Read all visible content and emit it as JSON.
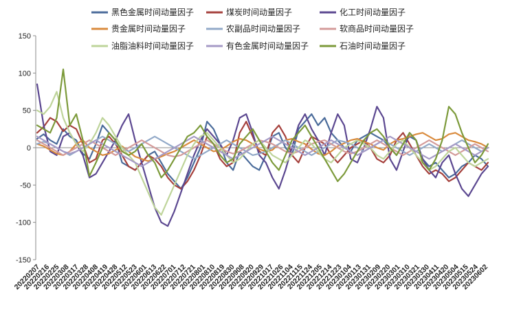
{
  "chart_data": {
    "type": "line",
    "title": "",
    "xlabel": "",
    "ylabel": "",
    "ylim": [
      -150,
      150
    ],
    "y_ticks": [
      150,
      100,
      50,
      0,
      -50,
      -100,
      -150
    ],
    "grid": false,
    "legend_position": "top",
    "x_tick_labels": [
      "20220207",
      "20220216",
      "20220225",
      "20220308",
      "20220317",
      "20220328",
      "20220408",
      "20220419",
      "20220428",
      "20220512",
      "20220523",
      "20220601",
      "20220613",
      "20220622",
      "20220701",
      "20220712",
      "20220721",
      "20220801",
      "20220810",
      "20220819",
      "20220830",
      "20220908",
      "20220920",
      "20220929",
      "20221017",
      "20221026",
      "20221104",
      "20221115",
      "20221124",
      "20221205",
      "20221214",
      "20221223",
      "20230104",
      "20230113",
      "20230131",
      "20230209",
      "20230220",
      "20230301",
      "20230310",
      "20230321",
      "20230330",
      "20230411",
      "20230420",
      "20230504",
      "20230515",
      "20230524",
      "20230602"
    ],
    "series": [
      {
        "name": "黑色金属时间动量因子",
        "color": "#4a6b9a",
        "values": [
          12,
          18,
          10,
          5,
          25,
          15,
          10,
          -8,
          -15,
          5,
          30,
          20,
          10,
          -20,
          -25,
          -30,
          -20,
          -10,
          -5,
          -20,
          -35,
          -45,
          -55,
          -40,
          -20,
          0,
          35,
          25,
          5,
          -20,
          -30,
          -5,
          -15,
          -25,
          -30,
          -10,
          15,
          20,
          0,
          -10,
          25,
          35,
          45,
          30,
          40,
          20,
          10,
          0,
          -5,
          10,
          15,
          20,
          15,
          10,
          0,
          -10,
          5,
          15,
          10,
          -15,
          -25,
          -20,
          -30,
          -40,
          -35,
          -25,
          -20,
          -10,
          -15,
          -25
        ]
      },
      {
        "name": "煤炭时间动量因子",
        "color": "#a5403c",
        "values": [
          20,
          28,
          40,
          35,
          22,
          30,
          25,
          5,
          -20,
          -15,
          10,
          15,
          5,
          -10,
          -25,
          -30,
          -20,
          -10,
          -15,
          -25,
          -40,
          -50,
          -55,
          -45,
          -30,
          -10,
          15,
          5,
          -15,
          -25,
          -20,
          20,
          35,
          15,
          -5,
          -10,
          20,
          30,
          15,
          -10,
          -20,
          0,
          15,
          10,
          5,
          -10,
          -20,
          -10,
          0,
          5,
          10,
          0,
          -15,
          -20,
          -10,
          10,
          20,
          5,
          -10,
          -25,
          -35,
          -30,
          -35,
          -45,
          -40,
          -30,
          -20,
          -25,
          -30,
          -20
        ]
      },
      {
        "name": "化工时间动量因子",
        "color": "#5b4790",
        "values": [
          85,
          30,
          -5,
          -10,
          15,
          20,
          5,
          -10,
          -40,
          -35,
          -20,
          -5,
          10,
          30,
          45,
          10,
          -20,
          -50,
          -80,
          -100,
          -105,
          -85,
          -60,
          -35,
          -10,
          10,
          25,
          15,
          5,
          -10,
          10,
          40,
          45,
          20,
          -10,
          -20,
          -40,
          -55,
          -30,
          0,
          30,
          45,
          25,
          10,
          -10,
          20,
          45,
          30,
          -15,
          -20,
          0,
          25,
          55,
          40,
          -15,
          -30,
          -5,
          20,
          10,
          -15,
          -30,
          -40,
          -20,
          -10,
          -35,
          -55,
          -65,
          -50,
          -35,
          -25
        ]
      },
      {
        "name": "贵金属时间动量因子",
        "color": "#d98a3c",
        "values": [
          5,
          2,
          -3,
          -8,
          -10,
          -5,
          5,
          10,
          0,
          -5,
          -10,
          -8,
          -3,
          2,
          -5,
          -12,
          -15,
          -18,
          -15,
          -12,
          -8,
          -5,
          0,
          5,
          10,
          5,
          0,
          -5,
          -3,
          2,
          8,
          12,
          10,
          5,
          -2,
          -5,
          -3,
          5,
          10,
          12,
          8,
          5,
          -2,
          -8,
          -10,
          -5,
          2,
          6,
          10,
          12,
          8,
          5,
          0,
          -3,
          5,
          10,
          12,
          15,
          18,
          20,
          15,
          10,
          12,
          18,
          20,
          15,
          10,
          8,
          5,
          0
        ]
      },
      {
        "name": "农副品时间动量因子",
        "color": "#92a9c8",
        "values": [
          5,
          8,
          5,
          0,
          -5,
          -10,
          -5,
          0,
          5,
          10,
          15,
          10,
          5,
          0,
          -5,
          0,
          5,
          10,
          15,
          10,
          5,
          0,
          -5,
          -10,
          -15,
          -10,
          -5,
          0,
          5,
          10,
          5,
          0,
          -5,
          -10,
          -8,
          -5,
          0,
          5,
          10,
          5,
          0,
          -5,
          -10,
          -5,
          0,
          5,
          10,
          8,
          5,
          0,
          -5,
          0,
          5,
          10,
          5,
          0,
          -5,
          -10,
          -5,
          0,
          5,
          0,
          -5,
          0,
          5,
          10,
          5,
          0,
          -5,
          0
        ]
      },
      {
        "name": "软商品时间动量因子",
        "color": "#d49b9a",
        "values": [
          10,
          5,
          0,
          -5,
          -10,
          -5,
          0,
          5,
          10,
          5,
          0,
          -5,
          -10,
          -5,
          0,
          5,
          10,
          5,
          0,
          -5,
          -10,
          -12,
          -10,
          -5,
          0,
          5,
          10,
          5,
          0,
          -5,
          -8,
          -5,
          0,
          5,
          10,
          8,
          5,
          0,
          -5,
          -8,
          -5,
          0,
          5,
          8,
          10,
          5,
          0,
          -5,
          -8,
          -5,
          0,
          5,
          10,
          5,
          0,
          -5,
          -10,
          -5,
          0,
          5,
          10,
          5,
          0,
          -5,
          -10,
          -5,
          0,
          5,
          0,
          -5
        ]
      },
      {
        "name": "油脂油料时间动量因子",
        "color": "#bed49a",
        "values": [
          50,
          45,
          55,
          75,
          40,
          20,
          5,
          -5,
          5,
          20,
          40,
          30,
          15,
          0,
          -10,
          -20,
          -40,
          -60,
          -80,
          -90,
          -70,
          -50,
          -30,
          -10,
          5,
          15,
          20,
          10,
          0,
          -10,
          -20,
          -15,
          -5,
          5,
          10,
          0,
          -10,
          -15,
          -20,
          -10,
          0,
          10,
          5,
          -5,
          -15,
          -20,
          -10,
          0,
          5,
          10,
          5,
          0,
          -10,
          -15,
          -5,
          5,
          10,
          0,
          -10,
          -20,
          -30,
          -25,
          -15,
          -5,
          0,
          -10,
          -20,
          -25,
          -20,
          -15
        ]
      },
      {
        "name": "有色金属时间动量因子",
        "color": "#a59ac6",
        "values": [
          15,
          10,
          5,
          0,
          -5,
          -8,
          -5,
          0,
          5,
          10,
          5,
          0,
          -5,
          -10,
          -15,
          -20,
          -25,
          -20,
          -15,
          -10,
          -5,
          0,
          5,
          10,
          15,
          10,
          5,
          0,
          -5,
          -10,
          -15,
          -10,
          -5,
          0,
          5,
          10,
          15,
          10,
          5,
          0,
          -5,
          -10,
          -5,
          0,
          5,
          10,
          5,
          0,
          -5,
          -10,
          -5,
          0,
          5,
          10,
          15,
          10,
          5,
          0,
          -5,
          -10,
          -15,
          -10,
          -5,
          0,
          5,
          0,
          -5,
          -10,
          -5,
          0
        ]
      },
      {
        "name": "石油时间动量因子",
        "color": "#7c9a3a",
        "values": [
          30,
          25,
          20,
          40,
          105,
          30,
          45,
          10,
          -38,
          -20,
          0,
          20,
          10,
          -5,
          -10,
          -5,
          5,
          -10,
          -20,
          -40,
          -30,
          -15,
          0,
          15,
          20,
          30,
          15,
          5,
          -10,
          -20,
          -15,
          5,
          15,
          25,
          10,
          -5,
          -20,
          -30,
          -10,
          10,
          20,
          30,
          15,
          0,
          -15,
          -30,
          -45,
          -35,
          -20,
          -5,
          10,
          20,
          25,
          15,
          0,
          -10,
          5,
          20,
          10,
          -20,
          -30,
          -15,
          10,
          55,
          45,
          20,
          0,
          -20,
          -10,
          5
        ]
      }
    ]
  }
}
